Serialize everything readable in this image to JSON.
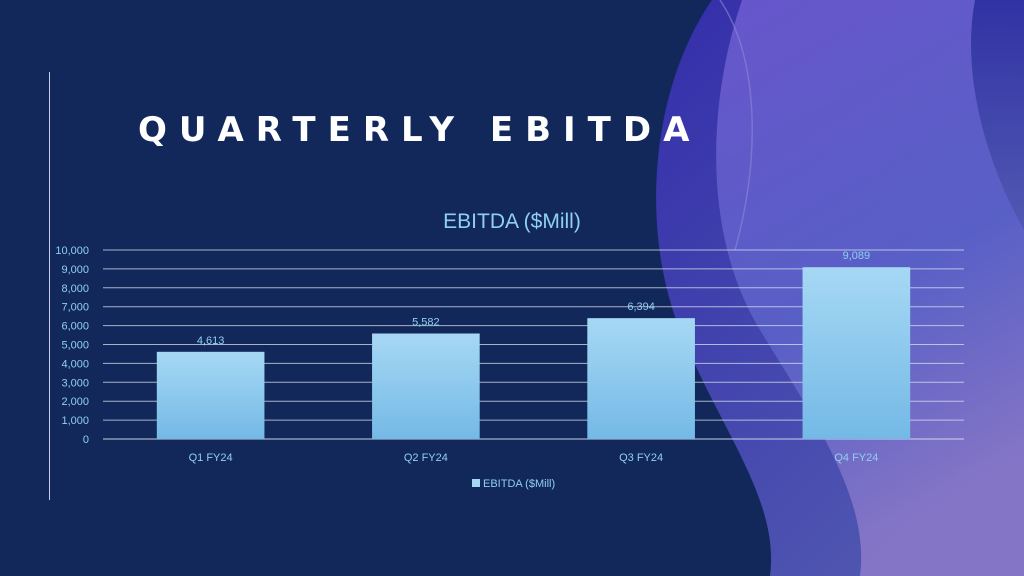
{
  "slide": {
    "title": "QUARTERLY EBITDA"
  },
  "colors": {
    "background": "#12285a",
    "bar_top": "#a6d8f4",
    "bar_bottom": "#74b9e6",
    "text": "#8fd0f0",
    "gridline": "#d9e2f0",
    "wave_dark": "#2a2f9e",
    "wave_light": "#7a6cc0"
  },
  "chart_data": {
    "type": "bar",
    "title": "EBITDA ($Mill)",
    "categories": [
      "Q1 FY24",
      "Q2 FY24",
      "Q3 FY24",
      "Q4 FY24"
    ],
    "series": [
      {
        "name": "EBITDA ($Mill)",
        "values": [
          4613,
          5582,
          6394,
          9089
        ]
      }
    ],
    "data_labels": [
      "4,613",
      "5,582",
      "6,394",
      "9,089"
    ],
    "yticks": [
      "0",
      "1,000",
      "2,000",
      "3,000",
      "4,000",
      "5,000",
      "6,000",
      "7,000",
      "8,000",
      "9,000",
      "10,000"
    ],
    "ylim": [
      0,
      10000
    ],
    "grid": true,
    "legend": "bottom"
  }
}
